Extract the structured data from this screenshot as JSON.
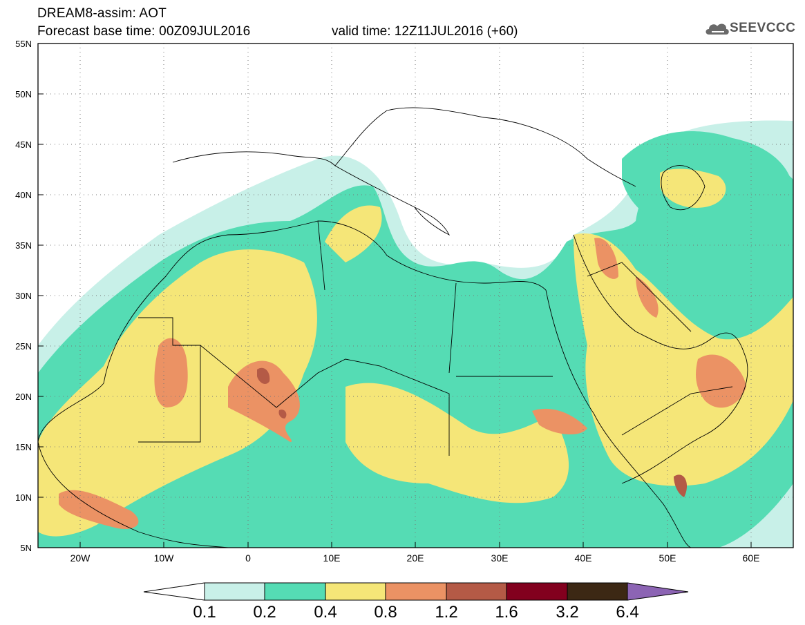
{
  "header": {
    "title": "DREAM8-assim: AOT",
    "base_time": "Forecast base time: 00Z09JUL2016",
    "valid_time": "valid time: 12Z11JUL2016 (+60)"
  },
  "logo": {
    "text": "SEEVCCC",
    "icon": "cloud-icon"
  },
  "map": {
    "lat_labels": [
      "55N",
      "50N",
      "45N",
      "40N",
      "35N",
      "30N",
      "25N",
      "20N",
      "15N",
      "10N",
      "5N"
    ],
    "lon_labels": [
      "20W",
      "10W",
      "0",
      "10E",
      "20E",
      "30E",
      "40E",
      "50E",
      "60E"
    ],
    "lat_range": [
      5,
      55
    ],
    "lon_range": [
      -25,
      65
    ],
    "grid": "dotted"
  },
  "colorbar": {
    "levels": [
      "0.1",
      "0.2",
      "0.4",
      "0.8",
      "1.2",
      "1.6",
      "3.2",
      "6.4"
    ],
    "colors": [
      "#ffffff",
      "#c8f0e8",
      "#55dcb4",
      "#f5e678",
      "#eb9264",
      "#b45a46",
      "#82001e",
      "#3c2814",
      "#8c64b4"
    ]
  }
}
